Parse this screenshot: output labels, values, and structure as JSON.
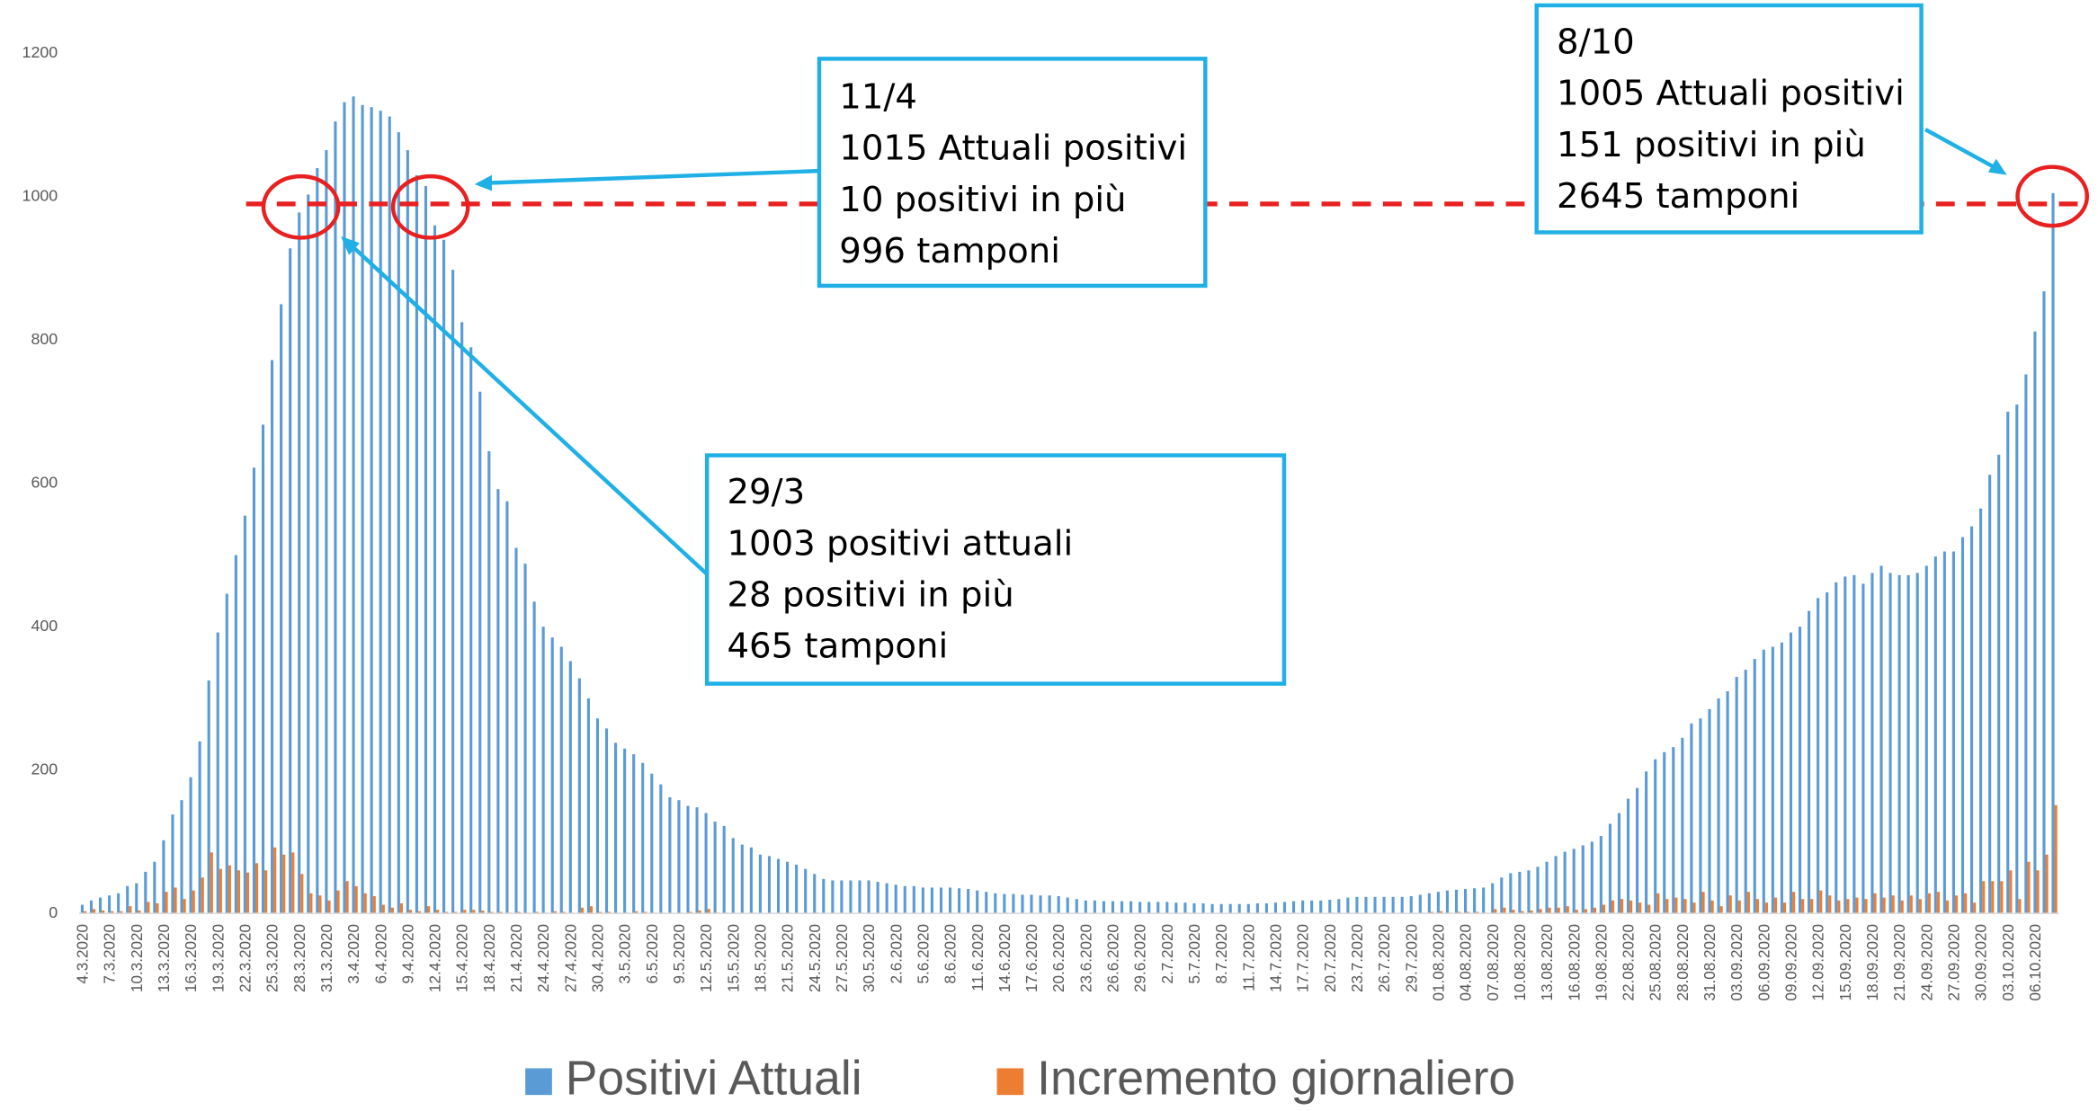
{
  "chart_data": {
    "type": "bar",
    "categories": [
      "4.3.2020",
      null,
      null,
      "7.3.2020",
      null,
      null,
      "10.3.2020",
      null,
      null,
      "13.3.2020",
      null,
      null,
      "16.3.2020",
      null,
      null,
      "19.3.2020",
      null,
      null,
      "22.3.2020",
      null,
      null,
      "25.3.2020",
      null,
      null,
      "28.3.2020",
      null,
      null,
      "31.3.2020",
      null,
      null,
      "3.4.2020",
      null,
      null,
      "6.4.2020",
      null,
      null,
      "9.4.2020",
      null,
      null,
      "12.4.2020",
      null,
      null,
      "15.4.2020",
      null,
      null,
      "18.4.2020",
      null,
      null,
      "21.4.2020",
      null,
      null,
      "24.4.2020",
      null,
      null,
      "27.4.2020",
      null,
      null,
      "30.4.2020",
      null,
      null,
      "3.5.2020",
      null,
      null,
      "6.5.2020",
      null,
      null,
      "9.5.2020",
      null,
      null,
      "12.5.2020",
      null,
      null,
      "15.5.2020",
      null,
      null,
      "18.5.2020",
      null,
      null,
      "21.5.2020",
      null,
      null,
      "24.5.2020",
      null,
      null,
      "27.5.2020",
      null,
      null,
      "30.5.2020",
      null,
      null,
      "2.6.2020",
      null,
      null,
      "5.6.2020",
      null,
      null,
      "8.6.2020",
      null,
      null,
      "11.6.2020",
      null,
      null,
      "14.6.2020",
      null,
      null,
      "17.6.2020",
      null,
      null,
      "20.6.2020",
      null,
      null,
      "23.6.2020",
      null,
      null,
      "26.6.2020",
      null,
      null,
      "29.6.2020",
      null,
      null,
      "2.7.2020",
      null,
      null,
      "5.7.2020",
      null,
      null,
      "8.7.2020",
      null,
      null,
      "11.7.2020",
      null,
      null,
      "14.7.2020",
      null,
      null,
      "17.7.2020",
      null,
      null,
      "20.7.2020",
      null,
      null,
      "23.7.2020",
      null,
      null,
      "26.7.2020",
      null,
      null,
      "29.7.2020",
      null,
      null,
      "01.08.2020",
      null,
      null,
      "04.08.2020",
      null,
      null,
      "07.08.2020",
      null,
      null,
      "10.08.2020",
      null,
      null,
      "13.08.2020",
      null,
      null,
      "16.08.2020",
      null,
      null,
      "19.08.2020",
      null,
      null,
      "22.08.2020",
      null,
      null,
      "25.08.2020",
      null,
      null,
      "28.08.2020",
      null,
      null,
      "31.08.2020",
      null,
      null,
      "03.09.2020",
      null,
      null,
      "06.09.2020",
      null,
      null,
      "09.09.2020",
      null,
      null,
      "12.09.2020",
      null,
      null,
      "15.09.2020",
      null,
      null,
      "18.09.2020",
      null,
      null,
      "21.09.2020",
      null,
      null,
      "24.09.2020",
      null,
      null,
      "27.09.2020",
      null,
      null,
      "30.09.2020",
      null,
      null,
      "03.10.2020",
      null,
      null,
      "06.10.2020",
      null,
      null
    ],
    "series": [
      {
        "name": "Positivi Attuali",
        "color": "#5b9bd5",
        "values": [
          12,
          18,
          22,
          25,
          28,
          38,
          42,
          58,
          72,
          102,
          138,
          158,
          190,
          240,
          325,
          392,
          446,
          500,
          555,
          622,
          682,
          772,
          850,
          928,
          978,
          1003,
          1040,
          1065,
          1105,
          1132,
          1140,
          1128,
          1125,
          1120,
          1112,
          1090,
          1065,
          1030,
          1015,
          960,
          940,
          898,
          825,
          790,
          728,
          645,
          592,
          575,
          510,
          488,
          435,
          400,
          385,
          372,
          352,
          328,
          300,
          272,
          258,
          238,
          230,
          222,
          210,
          195,
          180,
          162,
          158,
          150,
          148,
          140,
          128,
          122,
          105,
          96,
          92,
          82,
          80,
          76,
          72,
          68,
          62,
          55,
          48,
          46,
          46,
          46,
          46,
          46,
          44,
          42,
          40,
          38,
          38,
          36,
          36,
          36,
          36,
          35,
          34,
          32,
          30,
          28,
          27,
          27,
          26,
          26,
          25,
          25,
          24,
          22,
          20,
          18,
          18,
          17,
          17,
          17,
          17,
          16,
          16,
          16,
          16,
          15,
          15,
          14,
          14,
          13,
          13,
          13,
          13,
          13,
          14,
          14,
          15,
          16,
          17,
          18,
          18,
          18,
          19,
          20,
          22,
          23,
          23,
          23,
          23,
          23,
          23,
          24,
          26,
          28,
          30,
          32,
          33,
          34,
          35,
          36,
          42,
          50,
          56,
          58,
          60,
          65,
          72,
          80,
          86,
          90,
          95,
          100,
          108,
          125,
          140,
          160,
          175,
          198,
          215,
          225,
          232,
          245,
          265,
          272,
          285,
          300,
          310,
          330,
          340,
          355,
          368,
          372,
          378,
          392,
          400,
          422,
          440,
          448,
          462,
          470,
          472,
          460,
          475,
          485,
          475,
          472,
          472,
          475,
          485,
          498,
          505,
          505,
          525,
          540,
          565,
          612,
          640,
          700,
          710,
          752,
          812,
          868,
          1005
        ]
      },
      {
        "name": "Incremento giornaliero",
        "color": "#ed7d31",
        "values": [
          3,
          6,
          4,
          3,
          3,
          10,
          4,
          16,
          14,
          30,
          36,
          20,
          32,
          50,
          85,
          62,
          67,
          60,
          57,
          70,
          60,
          92,
          82,
          85,
          55,
          28,
          25,
          18,
          32,
          45,
          38,
          28,
          24,
          12,
          8,
          14,
          5,
          3,
          10,
          5,
          2,
          2,
          5,
          5,
          4,
          2,
          2,
          1,
          2,
          1,
          2,
          1,
          3,
          2,
          1,
          8,
          10,
          2,
          2,
          1,
          1,
          3,
          2,
          1,
          1,
          0,
          1,
          2,
          4,
          6,
          1,
          1,
          0,
          0,
          1,
          0,
          0,
          0,
          1,
          0,
          0,
          1,
          0,
          0,
          0,
          0,
          1,
          0,
          0,
          0,
          1,
          0,
          0,
          0,
          0,
          0,
          1,
          0,
          0,
          0,
          0,
          0,
          1,
          0,
          0,
          0,
          0,
          0,
          0,
          0,
          0,
          0,
          0,
          0,
          1,
          0,
          0,
          0,
          0,
          0,
          0,
          0,
          1,
          0,
          0,
          0,
          0,
          0,
          0,
          0,
          0,
          0,
          0,
          0,
          0,
          0,
          0,
          0,
          1,
          0,
          0,
          0,
          0,
          0,
          0,
          0,
          0,
          0,
          1,
          2,
          3,
          1,
          2,
          2,
          2,
          1,
          6,
          8,
          5,
          3,
          4,
          6,
          8,
          8,
          10,
          5,
          6,
          8,
          12,
          18,
          20,
          18,
          15,
          12,
          28,
          20,
          22,
          20,
          15,
          30,
          18,
          10,
          25,
          18,
          30,
          20,
          15,
          22,
          15,
          30,
          20,
          20,
          32,
          25,
          18,
          20,
          22,
          20,
          28,
          22,
          25,
          18,
          25,
          20,
          28,
          30,
          18,
          25,
          28,
          15,
          45,
          45,
          45,
          60,
          20,
          72,
          60,
          82,
          151
        ]
      }
    ],
    "ylim": [
      0,
      1200
    ],
    "yticks": [
      0,
      200,
      400,
      600,
      800,
      1000,
      1200
    ],
    "grid": false,
    "legend": "bottom",
    "reference_line": {
      "value": 990,
      "color": "#e8201f"
    },
    "annotations": [
      {
        "lines": [
          "11/4",
          "1015 Attuali positivi",
          "10 positivi in più",
          "996 tamponi"
        ]
      },
      {
        "lines": [
          "29/3",
          "1003 positivi attuali",
          "28 positivi in più",
          "465 tamponi"
        ]
      },
      {
        "lines": [
          "8/10",
          "1005 Attuali positivi",
          "151 positivi in più",
          "2645 tamponi"
        ]
      }
    ]
  }
}
